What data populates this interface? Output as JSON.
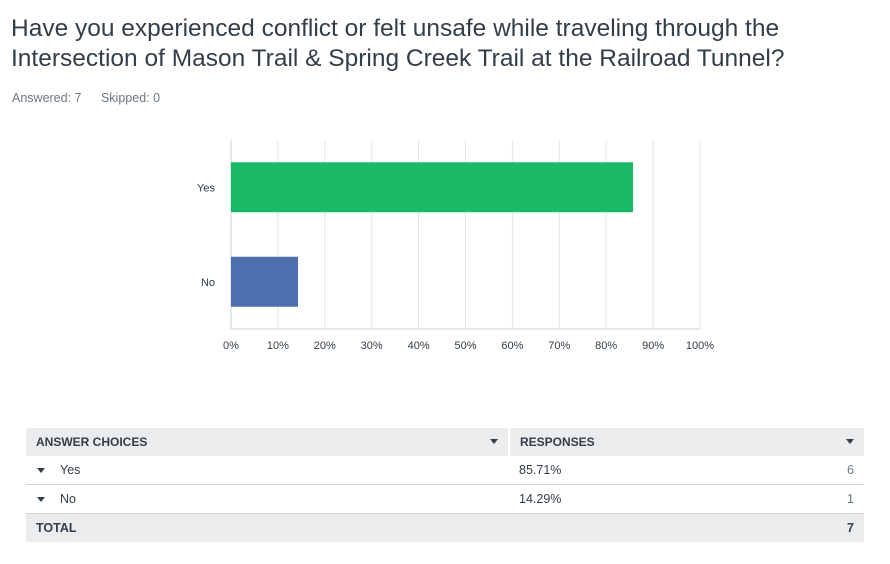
{
  "question": {
    "title_line1": "Have you experienced conflict or felt unsafe while traveling through the",
    "title_line2": "Intersection of Mason Trail & Spring Creek Trail at the Railroad Tunnel?",
    "answered": "Answered: 7",
    "skipped": "Skipped: 0"
  },
  "chart_data": {
    "type": "bar",
    "orientation": "horizontal",
    "categories": [
      "Yes",
      "No"
    ],
    "values": [
      85.71,
      14.29
    ],
    "colors": [
      "#1ab968",
      "#4e6fae"
    ],
    "xlim": [
      0,
      100
    ],
    "xticks": [
      0,
      10,
      20,
      30,
      40,
      50,
      60,
      70,
      80,
      90,
      100
    ],
    "tick_format": "percent",
    "grid": true
  },
  "table": {
    "headers": [
      "ANSWER CHOICES",
      "RESPONSES"
    ],
    "rows": [
      {
        "choice": "Yes",
        "percent": "85.71%",
        "count": "6"
      },
      {
        "choice": "No",
        "percent": "14.29%",
        "count": "1"
      }
    ],
    "total_label": "TOTAL",
    "total_count": "7"
  }
}
